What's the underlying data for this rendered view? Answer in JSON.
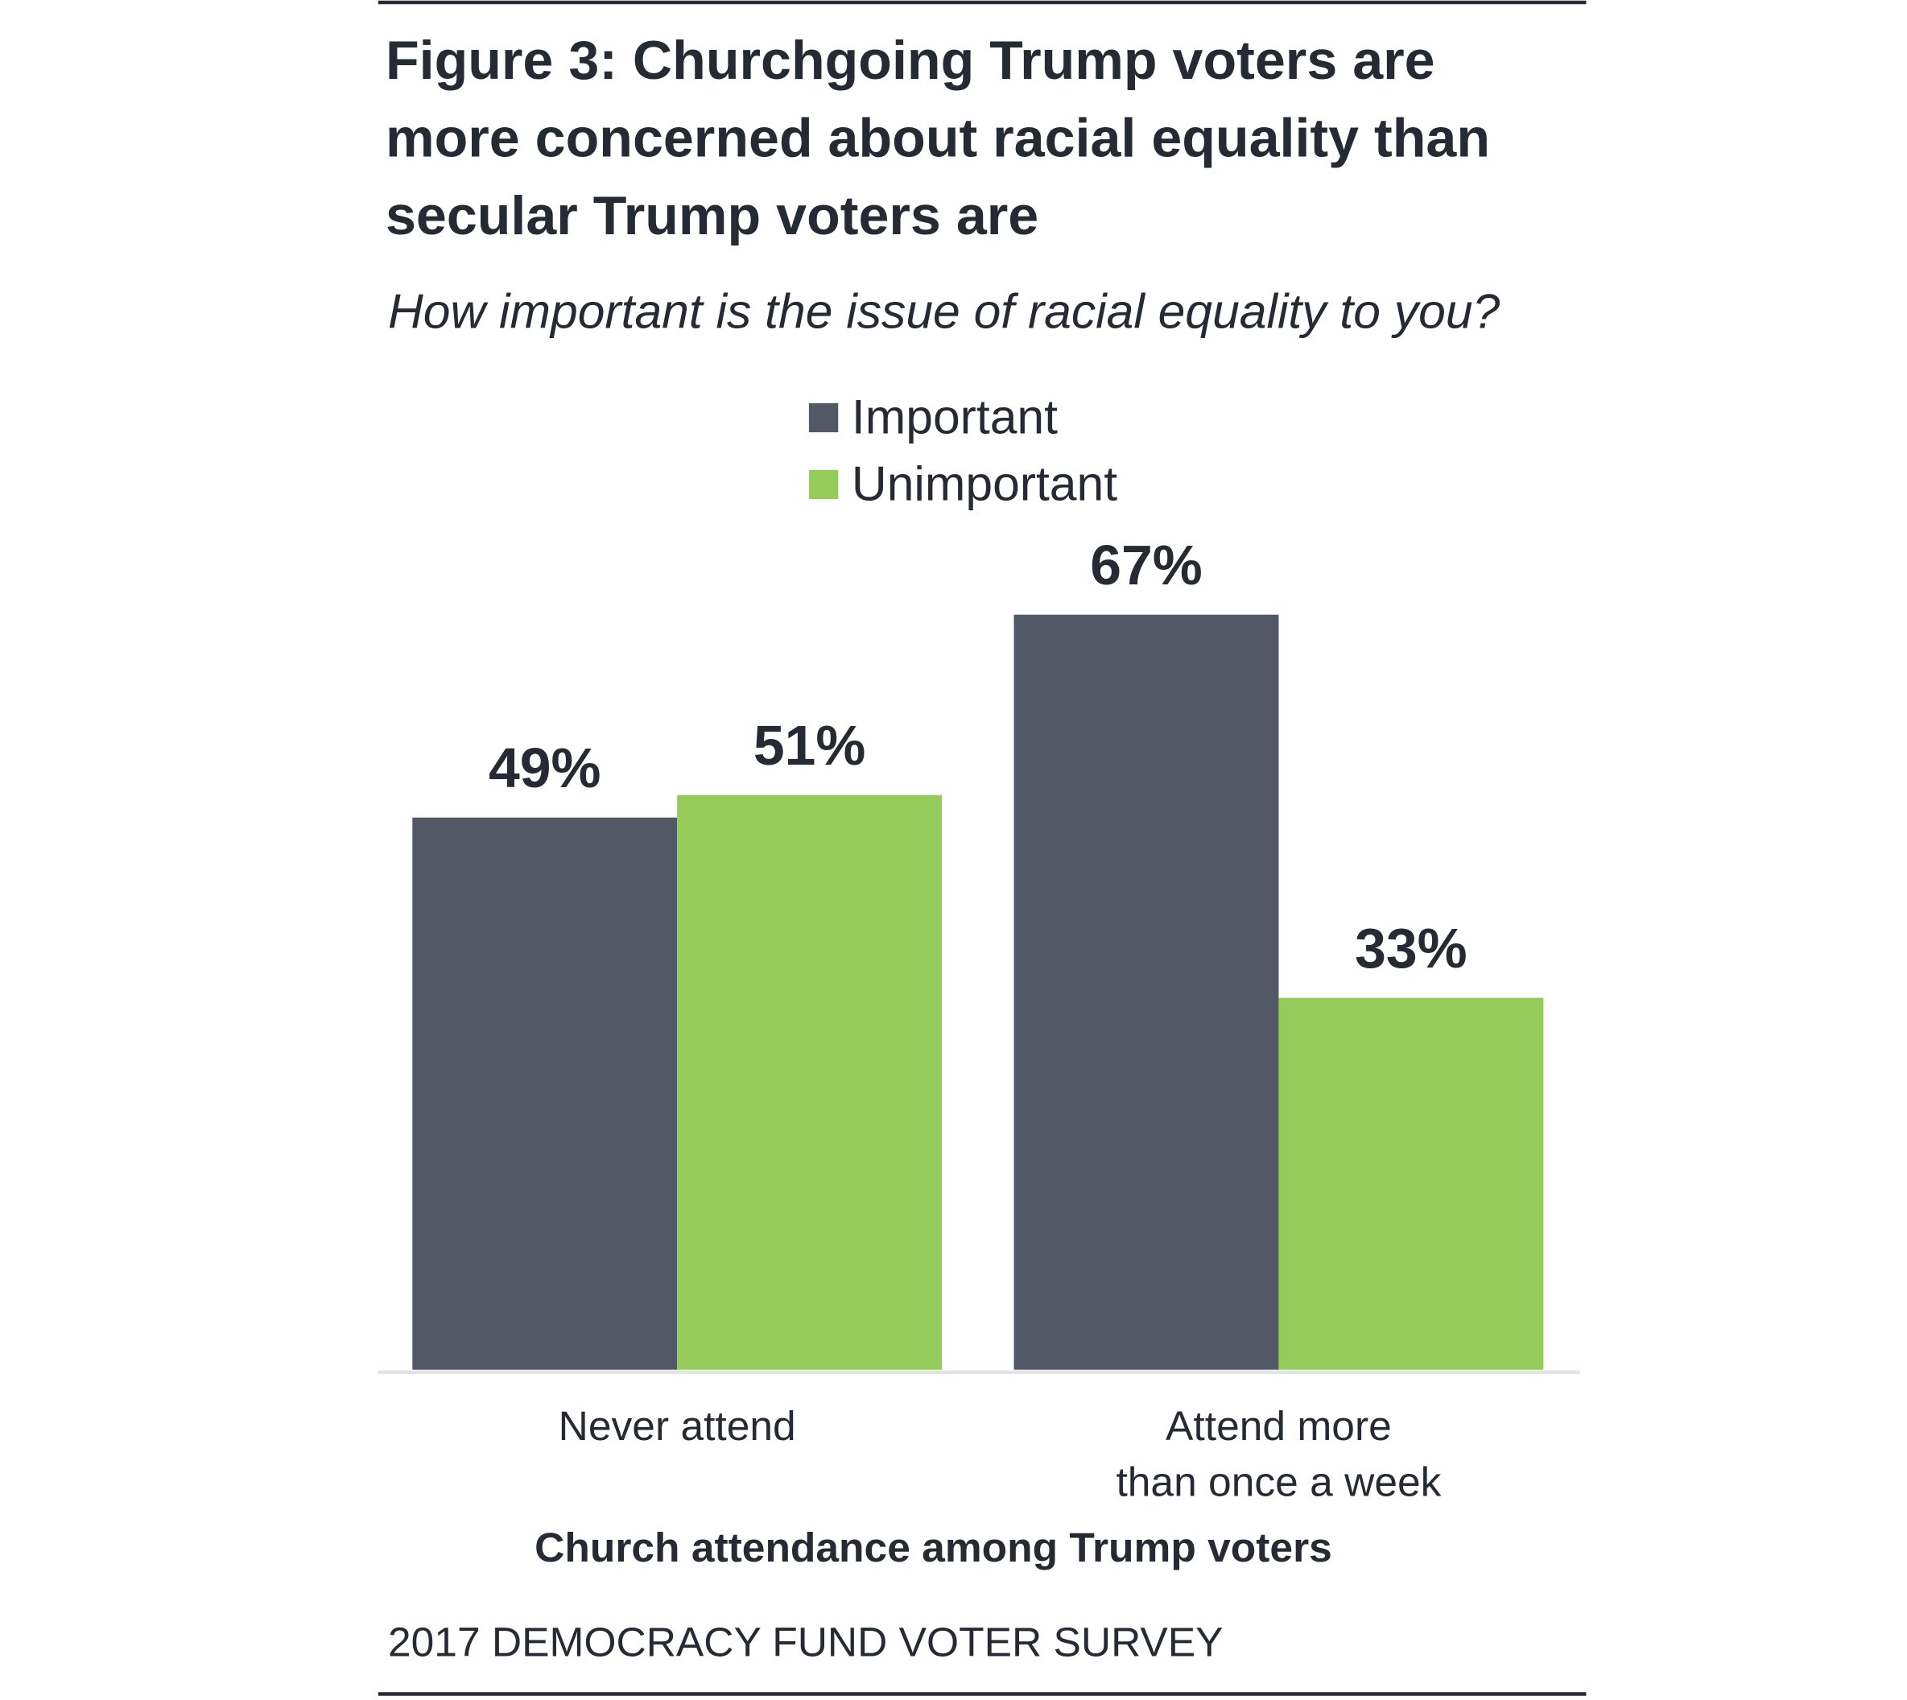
{
  "chart_data": {
    "type": "bar",
    "title": "Figure 3: Churchgoing Trump voters are more concerned about racial equality than secular Trump voters are",
    "subtitle": "How important is the issue of racial equality to you?",
    "x_label": "Church attendance among Trump voters",
    "source": "2017 DEMOCRACY FUND VOTER SURVEY",
    "categories": [
      "Never attend",
      "Attend more\nthan once a week"
    ],
    "series": [
      {
        "name": "Important",
        "color": "#525866",
        "values": [
          49,
          67
        ],
        "value_labels": [
          "49%",
          "67%"
        ]
      },
      {
        "name": "Unimportant",
        "color": "#94cb5b",
        "values": [
          51,
          33
        ],
        "value_labels": [
          "51%",
          "33%"
        ]
      }
    ],
    "ylim": [
      0,
      100
    ]
  }
}
